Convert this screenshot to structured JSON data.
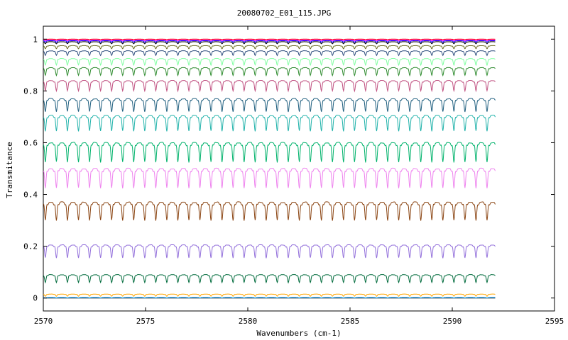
{
  "chart_data": {
    "type": "line",
    "title": "20080702_E01_115.JPG",
    "xlabel": "Wavenumbers (cm-1)",
    "ylabel": "Transmitance",
    "xlim": [
      2570,
      2595
    ],
    "ylim": [
      -0.05,
      1.05
    ],
    "x_ticks": [
      2570,
      2575,
      2580,
      2585,
      2590,
      2595
    ],
    "y_ticks": [
      0,
      0.2,
      0.4,
      0.6,
      0.8,
      1
    ],
    "x_tick_labels": [
      "2570",
      "2575",
      "2580",
      "2585",
      "2590",
      "2595"
    ],
    "y_tick_labels": [
      "0",
      "0.2",
      "0.4",
      "0.6",
      "0.8",
      "1"
    ],
    "grid": false,
    "line_spacing_cm1": 0.54,
    "x_range_data": [
      2570.0,
      2592.1
    ],
    "series": [
      {
        "color": "#000000",
        "baseline": 0.0,
        "depth": 0.0
      },
      {
        "color": "#00a0ff",
        "baseline": 0.002,
        "depth": 0.002
      },
      {
        "color": "#ffa500",
        "baseline": 0.015,
        "depth": 0.008
      },
      {
        "color": "#006b3c",
        "baseline": 0.09,
        "depth": 0.03
      },
      {
        "color": "#9370db",
        "baseline": 0.205,
        "depth": 0.05
      },
      {
        "color": "#8b4513",
        "baseline": 0.37,
        "depth": 0.07
      },
      {
        "color": "#ee82ee",
        "baseline": 0.5,
        "depth": 0.075
      },
      {
        "color": "#00b26b",
        "baseline": 0.6,
        "depth": 0.075
      },
      {
        "color": "#20b2aa",
        "baseline": 0.705,
        "depth": 0.06
      },
      {
        "color": "#1f5f7f",
        "baseline": 0.77,
        "depth": 0.05
      },
      {
        "color": "#c05080",
        "baseline": 0.84,
        "depth": 0.04
      },
      {
        "color": "#2e8b2e",
        "baseline": 0.89,
        "depth": 0.03
      },
      {
        "color": "#7fffa0",
        "baseline": 0.925,
        "depth": 0.025
      },
      {
        "color": "#2f4f7f",
        "baseline": 0.955,
        "depth": 0.018
      },
      {
        "color": "#6b6b1f",
        "baseline": 0.975,
        "depth": 0.012
      },
      {
        "color": "#000000",
        "baseline": 0.99,
        "depth": 0.008
      },
      {
        "color": "#ff00ff",
        "baseline": 0.997,
        "depth": 0.004
      },
      {
        "color": "#0000ff",
        "baseline": 0.994,
        "depth": 0.006
      },
      {
        "color": "#ff0000",
        "baseline": 1.0,
        "depth": 0.002
      }
    ]
  }
}
